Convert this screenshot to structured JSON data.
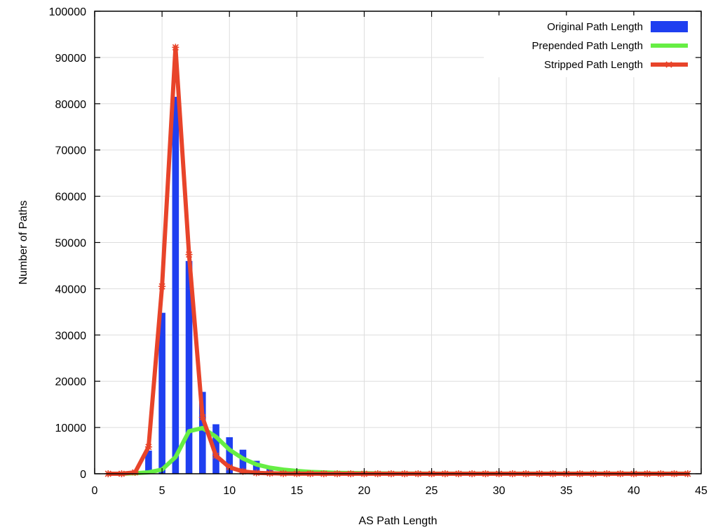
{
  "chart_data": {
    "type": "bar",
    "xlabel": "AS Path Length",
    "ylabel": "Number of Paths",
    "xlim": [
      0,
      45
    ],
    "ylim": [
      0,
      100000
    ],
    "x_ticks": [
      0,
      5,
      10,
      15,
      20,
      25,
      30,
      35,
      40,
      45
    ],
    "y_ticks": [
      0,
      10000,
      20000,
      30000,
      40000,
      50000,
      60000,
      70000,
      80000,
      90000,
      100000
    ],
    "grid": true,
    "legend_position": "top-right",
    "series": [
      {
        "name": "Original Path Length",
        "kind": "bar",
        "color": "#1f3ff0",
        "x": [
          1,
          2,
          3,
          4,
          5,
          6,
          7,
          8,
          9,
          10,
          11,
          12,
          13,
          14,
          15,
          16,
          17,
          18,
          19,
          20
        ],
        "values": [
          0,
          0,
          200,
          5000,
          34800,
          81500,
          46000,
          17700,
          10700,
          7900,
          5200,
          2800,
          1400,
          700,
          350,
          200,
          100,
          60,
          30,
          20
        ]
      },
      {
        "name": "Prepended Path Length",
        "kind": "line",
        "color": "#66ee44",
        "x": [
          1,
          2,
          3,
          4,
          5,
          6,
          7,
          8,
          9,
          10,
          11,
          12,
          13,
          14,
          15,
          16,
          17,
          18,
          19,
          20,
          21,
          22,
          23,
          24,
          25,
          26,
          27,
          28,
          29,
          30,
          31,
          32,
          33,
          34,
          35,
          36,
          37,
          38,
          39,
          40,
          41,
          42,
          43,
          44
        ],
        "values": [
          0,
          0,
          100,
          300,
          900,
          3600,
          9200,
          9900,
          8000,
          5200,
          3300,
          2000,
          1300,
          900,
          600,
          400,
          300,
          200,
          150,
          100,
          80,
          60,
          40,
          30,
          20,
          20,
          10,
          10,
          10,
          10,
          10,
          10,
          10,
          10,
          10,
          10,
          10,
          10,
          10,
          10,
          10,
          10,
          10,
          10
        ]
      },
      {
        "name": "Stripped Path Length",
        "kind": "line-marker",
        "color": "#e8442a",
        "x": [
          1,
          2,
          3,
          4,
          5,
          6,
          7,
          8,
          9,
          10,
          11,
          12,
          13,
          14,
          15,
          16,
          17,
          18,
          19,
          20,
          21,
          22,
          23,
          24,
          25,
          26,
          27,
          28,
          29,
          30,
          31,
          32,
          33,
          34,
          35,
          36,
          37,
          38,
          39,
          40,
          41,
          42,
          43,
          44
        ],
        "values": [
          0,
          0,
          300,
          5800,
          40500,
          92200,
          47400,
          12200,
          3900,
          1400,
          500,
          200,
          100,
          40,
          20,
          10,
          0,
          0,
          0,
          0,
          0,
          0,
          0,
          0,
          0,
          0,
          0,
          0,
          0,
          0,
          0,
          0,
          0,
          0,
          0,
          0,
          0,
          0,
          0,
          0,
          0,
          0,
          0,
          0
        ]
      }
    ]
  }
}
